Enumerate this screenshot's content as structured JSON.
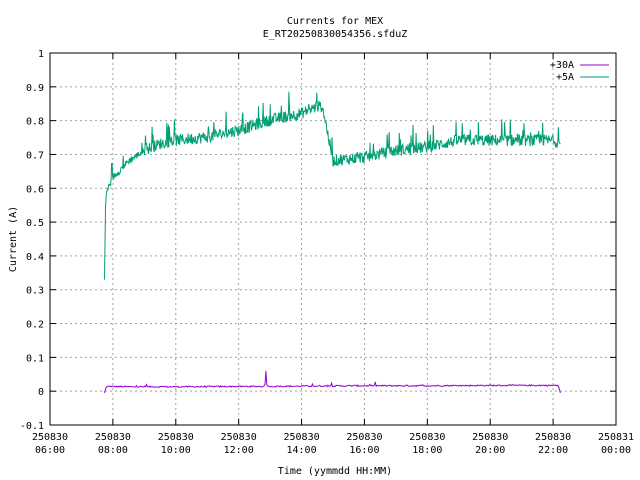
{
  "chart_data": {
    "type": "line",
    "title": "Currents for MEX",
    "subtitle": "E_RT20250830054356.sfduZ",
    "xlabel": "Time (yymmdd HH:MM)",
    "ylabel": "Current (A)",
    "xlim": [
      "250830 06:00",
      "250831 00:00"
    ],
    "ylim": [
      -0.1,
      1.0
    ],
    "grid": true,
    "legend_position": "top-right",
    "x_ticks": [
      {
        "date": "250830",
        "time": "06:00"
      },
      {
        "date": "250830",
        "time": "08:00"
      },
      {
        "date": "250830",
        "time": "10:00"
      },
      {
        "date": "250830",
        "time": "12:00"
      },
      {
        "date": "250830",
        "time": "14:00"
      },
      {
        "date": "250830",
        "time": "16:00"
      },
      {
        "date": "250830",
        "time": "18:00"
      },
      {
        "date": "250830",
        "time": "20:00"
      },
      {
        "date": "250830",
        "time": "22:00"
      },
      {
        "date": "250831",
        "time": "00:00"
      }
    ],
    "y_ticks": [
      "-0.1",
      "0",
      "0.1",
      "0.2",
      "0.3",
      "0.4",
      "0.5",
      "0.6",
      "0.7",
      "0.8",
      "0.9",
      "1"
    ],
    "series": [
      {
        "name": "+30A",
        "color": "#9400d3",
        "x": [
          "250830 07:44",
          "250830 07:47",
          "250830 07:50",
          "250830 08:30",
          "250830 10:00",
          "250830 12:00",
          "250830 12:50",
          "250830 12:52",
          "250830 12:54",
          "250830 14:00",
          "250830 16:00",
          "250830 18:00",
          "250830 20:00",
          "250830 22:00",
          "250830 22:10",
          "250830 22:12",
          "250830 22:14"
        ],
        "y": [
          -0.005,
          0.012,
          0.014,
          0.013,
          0.013,
          0.014,
          0.014,
          0.06,
          0.014,
          0.015,
          0.016,
          0.016,
          0.017,
          0.017,
          0.017,
          0.005,
          -0.005
        ]
      },
      {
        "name": "+5A",
        "color": "#009e73",
        "x": [
          "250830 07:44",
          "250830 07:46",
          "250830 07:48",
          "250830 08:00",
          "250830 08:30",
          "250830 09:00",
          "250830 09:30",
          "250830 10:00",
          "250830 11:00",
          "250830 12:00",
          "250830 13:00",
          "250830 14:00",
          "250830 14:30",
          "250830 14:40",
          "250830 15:00",
          "250830 16:00",
          "250830 17:00",
          "250830 18:00",
          "250830 19:00",
          "250830 20:00",
          "250830 21:00",
          "250830 22:00",
          "250830 22:14"
        ],
        "y": [
          0.33,
          0.55,
          0.59,
          0.63,
          0.68,
          0.71,
          0.73,
          0.74,
          0.75,
          0.77,
          0.8,
          0.82,
          0.84,
          0.84,
          0.68,
          0.69,
          0.71,
          0.72,
          0.74,
          0.74,
          0.74,
          0.74,
          0.73
        ]
      }
    ]
  }
}
